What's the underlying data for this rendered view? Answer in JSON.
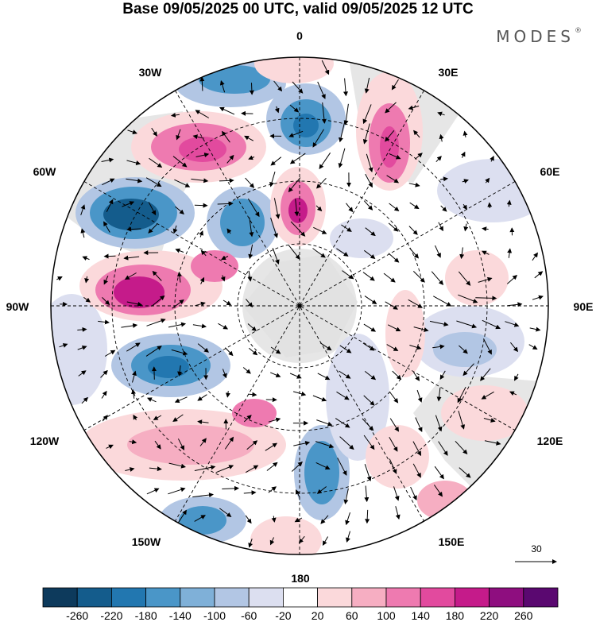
{
  "title": "Base 09/05/2025 00 UTC, valid 09/05/2025 12 UTC",
  "brand": "MODES",
  "longitude_labels": {
    "n": "0",
    "ne1": "30E",
    "ne2": "60E",
    "e": "90E",
    "se1": "120E",
    "se2": "150E",
    "s": "180",
    "sw2": "150W",
    "sw1": "120W",
    "w": "90W",
    "nw2": "60W",
    "nw1": "30W"
  },
  "reference_vector": "30",
  "colorbar": {
    "labels": [
      "-260",
      "-220",
      "-180",
      "-140",
      "-100",
      "-60",
      "-20",
      "20",
      "60",
      "100",
      "140",
      "180",
      "220",
      "260"
    ],
    "colors": [
      "#0d3a5c",
      "#145c8c",
      "#2277b0",
      "#4a96c8",
      "#7fb0d8",
      "#b2c6e4",
      "#dcdff0",
      "#ffffff",
      "#fbd9db",
      "#f6aec2",
      "#ee7ab0",
      "#e24a9e",
      "#c51b8a",
      "#8e0e7f",
      "#5a0870"
    ]
  },
  "colors": {
    "land": "#e6e6e6",
    "grid": "#000000"
  }
}
